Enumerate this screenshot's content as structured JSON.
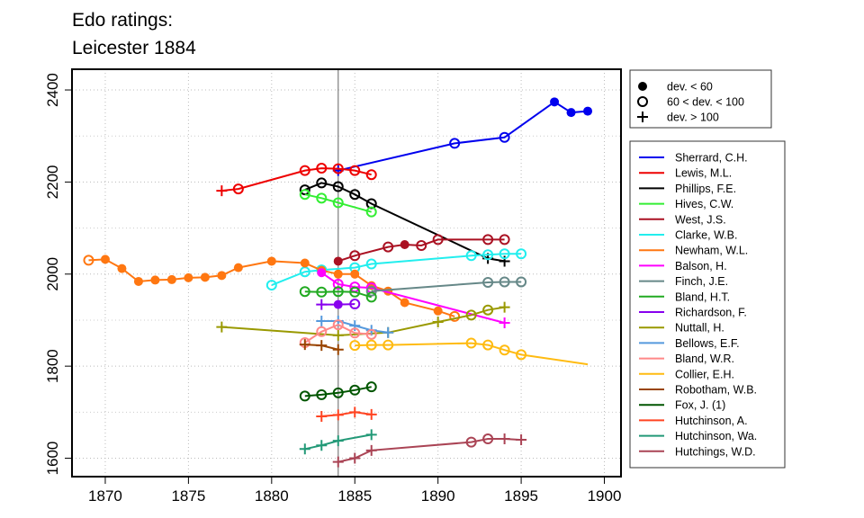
{
  "chart_data": {
    "type": "line",
    "title_lines": [
      "Edo ratings:",
      "Leicester 1884"
    ],
    "xlabel": "",
    "ylabel": "",
    "xlim": [
      1868,
      1901
    ],
    "ylim": [
      1560,
      2445
    ],
    "x_ticks": [
      1870,
      1875,
      1880,
      1885,
      1890,
      1895,
      1900
    ],
    "y_ticks": [
      1600,
      1800,
      2000,
      2200,
      2400
    ],
    "grid": true,
    "reference_line_x": 1884,
    "marker_legend": [
      {
        "label": "dev. < 60",
        "marker": "dot"
      },
      {
        "label": "60 < dev. < 100",
        "marker": "circle"
      },
      {
        "label": "dev. > 100",
        "marker": "plus"
      }
    ],
    "series": [
      {
        "name": "Sherrard, C.H.",
        "color": "#0000ee",
        "points": [
          {
            "x": 1884,
            "y": 2225,
            "m": "plus"
          },
          {
            "x": 1891,
            "y": 2284,
            "m": "circle"
          },
          {
            "x": 1894,
            "y": 2297,
            "m": "circle"
          },
          {
            "x": 1897,
            "y": 2374,
            "m": "dot"
          },
          {
            "x": 1898,
            "y": 2351,
            "m": "dot"
          },
          {
            "x": 1899,
            "y": 2354,
            "m": "dot"
          }
        ]
      },
      {
        "name": "Lewis, M.L.",
        "color": "#ee0000",
        "points": [
          {
            "x": 1877,
            "y": 2181,
            "m": "plus"
          },
          {
            "x": 1878,
            "y": 2185,
            "m": "circle"
          },
          {
            "x": 1882,
            "y": 2225,
            "m": "circle"
          },
          {
            "x": 1883,
            "y": 2230,
            "m": "circle"
          },
          {
            "x": 1884,
            "y": 2229,
            "m": "circle"
          },
          {
            "x": 1885,
            "y": 2225,
            "m": "circle"
          },
          {
            "x": 1886,
            "y": 2216,
            "m": "circle"
          }
        ]
      },
      {
        "name": "Phillips, F.E.",
        "color": "#000000",
        "points": [
          {
            "x": 1882,
            "y": 2183,
            "m": "circle"
          },
          {
            "x": 1883,
            "y": 2198,
            "m": "circle"
          },
          {
            "x": 1884,
            "y": 2190,
            "m": "circle"
          },
          {
            "x": 1885,
            "y": 2173,
            "m": "circle"
          },
          {
            "x": 1886,
            "y": 2153,
            "m": "circle"
          },
          {
            "x": 1893,
            "y": 2034,
            "m": "plus"
          },
          {
            "x": 1894,
            "y": 2028,
            "m": "plus"
          }
        ]
      },
      {
        "name": "Hives, C.W.",
        "color": "#33ee33",
        "points": [
          {
            "x": 1882,
            "y": 2173,
            "m": "circle"
          },
          {
            "x": 1883,
            "y": 2165,
            "m": "circle"
          },
          {
            "x": 1884,
            "y": 2155,
            "m": "circle"
          },
          {
            "x": 1886,
            "y": 2135,
            "m": "circle"
          }
        ]
      },
      {
        "name": "West, J.S.",
        "color": "#aa1122",
        "points": [
          {
            "x": 1884,
            "y": 2028,
            "m": "dot"
          },
          {
            "x": 1885,
            "y": 2040,
            "m": "circle"
          },
          {
            "x": 1887,
            "y": 2059,
            "m": "circle"
          },
          {
            "x": 1888,
            "y": 2064,
            "m": "dot"
          },
          {
            "x": 1889,
            "y": 2062,
            "m": "circle"
          },
          {
            "x": 1890,
            "y": 2075,
            "m": "circle"
          },
          {
            "x": 1893,
            "y": 2075,
            "m": "circle"
          },
          {
            "x": 1894,
            "y": 2075,
            "m": "circle"
          }
        ]
      },
      {
        "name": "Clarke, W.B.",
        "color": "#22eeee",
        "points": [
          {
            "x": 1880,
            "y": 1976,
            "m": "circle"
          },
          {
            "x": 1882,
            "y": 2005,
            "m": "circle"
          },
          {
            "x": 1883,
            "y": 2009,
            "m": "circle"
          },
          {
            "x": 1885,
            "y": 2014,
            "m": "circle"
          },
          {
            "x": 1886,
            "y": 2022,
            "m": "circle"
          },
          {
            "x": 1892,
            "y": 2040,
            "m": "circle"
          },
          {
            "x": 1893,
            "y": 2042,
            "m": "circle"
          },
          {
            "x": 1894,
            "y": 2044,
            "m": "circle"
          },
          {
            "x": 1895,
            "y": 2044,
            "m": "circle"
          }
        ]
      },
      {
        "name": "Newham, W.L.",
        "color": "#ff7711",
        "points": [
          {
            "x": 1869,
            "y": 2030,
            "m": "circle"
          },
          {
            "x": 1870,
            "y": 2032,
            "m": "dot"
          },
          {
            "x": 1871,
            "y": 2012,
            "m": "dot"
          },
          {
            "x": 1872,
            "y": 1984,
            "m": "dot"
          },
          {
            "x": 1873,
            "y": 1987,
            "m": "dot"
          },
          {
            "x": 1874,
            "y": 1988,
            "m": "dot"
          },
          {
            "x": 1875,
            "y": 1992,
            "m": "dot"
          },
          {
            "x": 1876,
            "y": 1993,
            "m": "dot"
          },
          {
            "x": 1877,
            "y": 1997,
            "m": "dot"
          },
          {
            "x": 1878,
            "y": 2014,
            "m": "dot"
          },
          {
            "x": 1880,
            "y": 2028,
            "m": "dot"
          },
          {
            "x": 1882,
            "y": 2024,
            "m": "dot"
          },
          {
            "x": 1883,
            "y": 2008,
            "m": "dot"
          },
          {
            "x": 1884,
            "y": 2000,
            "m": "dot"
          },
          {
            "x": 1885,
            "y": 2000,
            "m": "dot"
          },
          {
            "x": 1886,
            "y": 1975,
            "m": "dot"
          },
          {
            "x": 1887,
            "y": 1963,
            "m": "dot"
          },
          {
            "x": 1888,
            "y": 1938,
            "m": "dot"
          },
          {
            "x": 1890,
            "y": 1920,
            "m": "dot"
          },
          {
            "x": 1891,
            "y": 1908,
            "m": "circle"
          }
        ]
      },
      {
        "name": "Balson, H.",
        "color": "#ff00ff",
        "points": [
          {
            "x": 1883,
            "y": 2003,
            "m": "dot"
          },
          {
            "x": 1884,
            "y": 1978,
            "m": "circle"
          },
          {
            "x": 1885,
            "y": 1972,
            "m": "circle"
          },
          {
            "x": 1886,
            "y": 1970,
            "m": "circle"
          },
          {
            "x": 1894,
            "y": 1894,
            "m": "plus"
          }
        ]
      },
      {
        "name": "Finch, J.E.",
        "color": "#668888",
        "points": [
          {
            "x": 1886,
            "y": 1963,
            "m": "circle"
          },
          {
            "x": 1893,
            "y": 1982,
            "m": "circle"
          },
          {
            "x": 1894,
            "y": 1983,
            "m": "circle"
          },
          {
            "x": 1895,
            "y": 1983,
            "m": "circle"
          }
        ]
      },
      {
        "name": "Bland, H.T.",
        "color": "#22aa22",
        "points": [
          {
            "x": 1882,
            "y": 1962,
            "m": "circle"
          },
          {
            "x": 1883,
            "y": 1961,
            "m": "circle"
          },
          {
            "x": 1884,
            "y": 1962,
            "m": "circle"
          },
          {
            "x": 1885,
            "y": 1961,
            "m": "circle"
          },
          {
            "x": 1886,
            "y": 1950,
            "m": "circle"
          }
        ]
      },
      {
        "name": "Richardson, F.",
        "color": "#8800ee",
        "points": [
          {
            "x": 1883,
            "y": 1934,
            "m": "plus"
          },
          {
            "x": 1884,
            "y": 1934,
            "m": "dot"
          },
          {
            "x": 1885,
            "y": 1935,
            "m": "circle"
          }
        ]
      },
      {
        "name": "Nuttall, H.",
        "color": "#999900",
        "points": [
          {
            "x": 1877,
            "y": 1885,
            "m": "plus"
          },
          {
            "x": 1884,
            "y": 1867,
            "m": "plus"
          },
          {
            "x": 1887,
            "y": 1873,
            "m": "plus"
          },
          {
            "x": 1890,
            "y": 1896,
            "m": "plus"
          },
          {
            "x": 1892,
            "y": 1911,
            "m": "circle"
          },
          {
            "x": 1893,
            "y": 1922,
            "m": "circle"
          },
          {
            "x": 1894,
            "y": 1928,
            "m": "plus"
          }
        ]
      },
      {
        "name": "Bellows, E.F.",
        "color": "#5599dd",
        "points": [
          {
            "x": 1883,
            "y": 1898,
            "m": "plus"
          },
          {
            "x": 1884,
            "y": 1898,
            "m": "plus"
          },
          {
            "x": 1885,
            "y": 1888,
            "m": "plus"
          },
          {
            "x": 1886,
            "y": 1878,
            "m": "plus"
          },
          {
            "x": 1887,
            "y": 1873,
            "m": "plus"
          }
        ]
      },
      {
        "name": "Bland, W.R.",
        "color": "#ff8888",
        "points": [
          {
            "x": 1882,
            "y": 1851,
            "m": "circle"
          },
          {
            "x": 1883,
            "y": 1875,
            "m": "circle"
          },
          {
            "x": 1884,
            "y": 1890,
            "m": "circle"
          },
          {
            "x": 1885,
            "y": 1872,
            "m": "circle"
          },
          {
            "x": 1886,
            "y": 1869,
            "m": "circle"
          }
        ]
      },
      {
        "name": "Collier, E.H.",
        "color": "#ffbb11",
        "points": [
          {
            "x": 1885,
            "y": 1845,
            "m": "circle"
          },
          {
            "x": 1886,
            "y": 1846,
            "m": "circle"
          },
          {
            "x": 1887,
            "y": 1846,
            "m": "circle"
          },
          {
            "x": 1892,
            "y": 1850,
            "m": "circle"
          },
          {
            "x": 1893,
            "y": 1846,
            "m": "circle"
          },
          {
            "x": 1894,
            "y": 1835,
            "m": "circle"
          },
          {
            "x": 1895,
            "y": 1825,
            "m": "circle"
          },
          {
            "x": 1899,
            "y": 1804,
            "m": "none"
          }
        ]
      },
      {
        "name": "Robotham, W.B.",
        "color": "#994400",
        "points": [
          {
            "x": 1882,
            "y": 1847,
            "m": "plus"
          },
          {
            "x": 1883,
            "y": 1845,
            "m": "plus"
          },
          {
            "x": 1884,
            "y": 1836,
            "m": "plus"
          }
        ]
      },
      {
        "name": "Fox, J. (1)",
        "color": "#005500",
        "points": [
          {
            "x": 1882,
            "y": 1735,
            "m": "circle"
          },
          {
            "x": 1883,
            "y": 1738,
            "m": "circle"
          },
          {
            "x": 1884,
            "y": 1742,
            "m": "circle"
          },
          {
            "x": 1885,
            "y": 1748,
            "m": "circle"
          },
          {
            "x": 1886,
            "y": 1755,
            "m": "circle"
          }
        ]
      },
      {
        "name": "Hutchinson, A.",
        "color": "#ff4422",
        "points": [
          {
            "x": 1883,
            "y": 1691,
            "m": "plus"
          },
          {
            "x": 1884,
            "y": 1694,
            "m": "plus"
          },
          {
            "x": 1885,
            "y": 1700,
            "m": "plus"
          },
          {
            "x": 1886,
            "y": 1695,
            "m": "plus"
          }
        ]
      },
      {
        "name": "Hutchinson, Wa.",
        "color": "#229977",
        "points": [
          {
            "x": 1882,
            "y": 1620,
            "m": "plus"
          },
          {
            "x": 1883,
            "y": 1628,
            "m": "plus"
          },
          {
            "x": 1884,
            "y": 1638,
            "m": "plus"
          },
          {
            "x": 1886,
            "y": 1651,
            "m": "plus"
          }
        ]
      },
      {
        "name": "Hutchings, W.D.",
        "color": "#aa4455",
        "points": [
          {
            "x": 1884,
            "y": 1592,
            "m": "plus"
          },
          {
            "x": 1885,
            "y": 1600,
            "m": "plus"
          },
          {
            "x": 1886,
            "y": 1617,
            "m": "plus"
          },
          {
            "x": 1892,
            "y": 1635,
            "m": "circle"
          },
          {
            "x": 1893,
            "y": 1642,
            "m": "circle"
          },
          {
            "x": 1894,
            "y": 1642,
            "m": "plus"
          },
          {
            "x": 1895,
            "y": 1640,
            "m": "plus"
          }
        ]
      }
    ]
  }
}
